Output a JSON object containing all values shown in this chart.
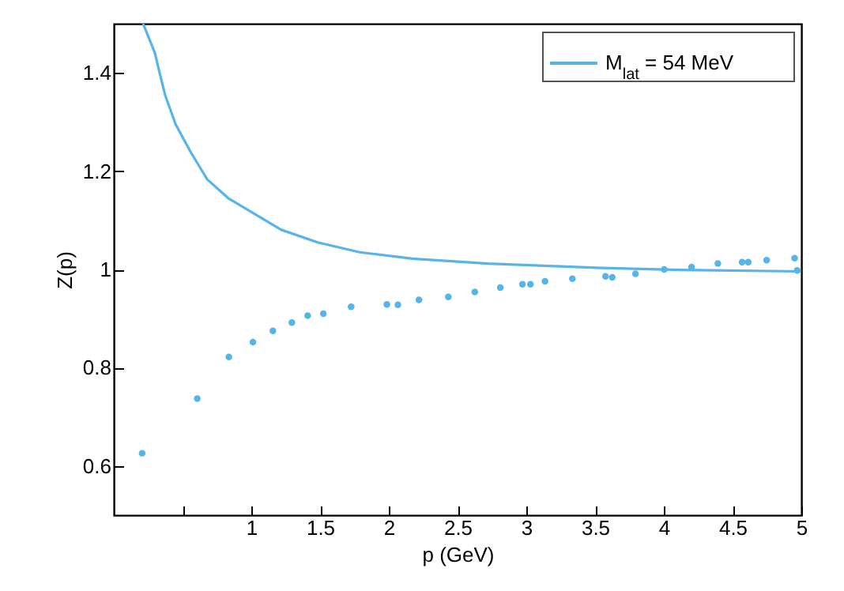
{
  "chart_data": {
    "type": "line",
    "xlabel": "p (GeV)",
    "ylabel": "Z(p)",
    "xlim": [
      0,
      5
    ],
    "ylim": [
      0.5,
      1.5
    ],
    "xticks": [
      {
        "value": 0.5,
        "label": null
      },
      1,
      1.5,
      2,
      2.5,
      3,
      3.5,
      4,
      4.5,
      5
    ],
    "yticks": [
      0.6,
      0.8,
      1,
      1.2,
      1.4
    ],
    "legend": "top right",
    "series": [
      {
        "type": "line",
        "name": "M$_{lat}$ = 54 MeV",
        "color": "#56b4e9",
        "x": [
          0.213,
          0.298,
          0.336,
          0.374,
          0.45,
          0.565,
          0.68,
          0.832,
          1.023,
          1.215,
          1.482,
          1.788,
          2.17,
          2.723,
          3.545,
          4.118,
          4.997
        ],
        "values": [
          1.5,
          1.441,
          1.397,
          1.354,
          1.295,
          1.236,
          1.183,
          1.145,
          1.113,
          1.081,
          1.055,
          1.035,
          1.022,
          1.012,
          1.003,
          0.999,
          0.996
        ]
      },
      {
        "type": "scatter",
        "marker": "circle",
        "color": "#56b4e9",
        "x": [
          0.206,
          0.607,
          0.837,
          1.012,
          1.157,
          1.295,
          1.41,
          1.524,
          1.726,
          1.986,
          2.066,
          2.219,
          2.433,
          2.625,
          2.811,
          2.972,
          3.03,
          3.136,
          3.335,
          3.576,
          3.625,
          3.794,
          4.003,
          4.202,
          4.393,
          4.569,
          4.614,
          4.748,
          4.951,
          4.97
        ],
        "values": [
          0.626,
          0.737,
          0.822,
          0.852,
          0.875,
          0.892,
          0.906,
          0.91,
          0.924,
          0.929,
          0.928,
          0.938,
          0.944,
          0.954,
          0.963,
          0.97,
          0.97,
          0.976,
          0.981,
          0.986,
          0.984,
          0.991,
          1.0,
          1.005,
          1.012,
          1.015,
          1.015,
          1.019,
          1.023,
          0.998
        ]
      }
    ]
  }
}
